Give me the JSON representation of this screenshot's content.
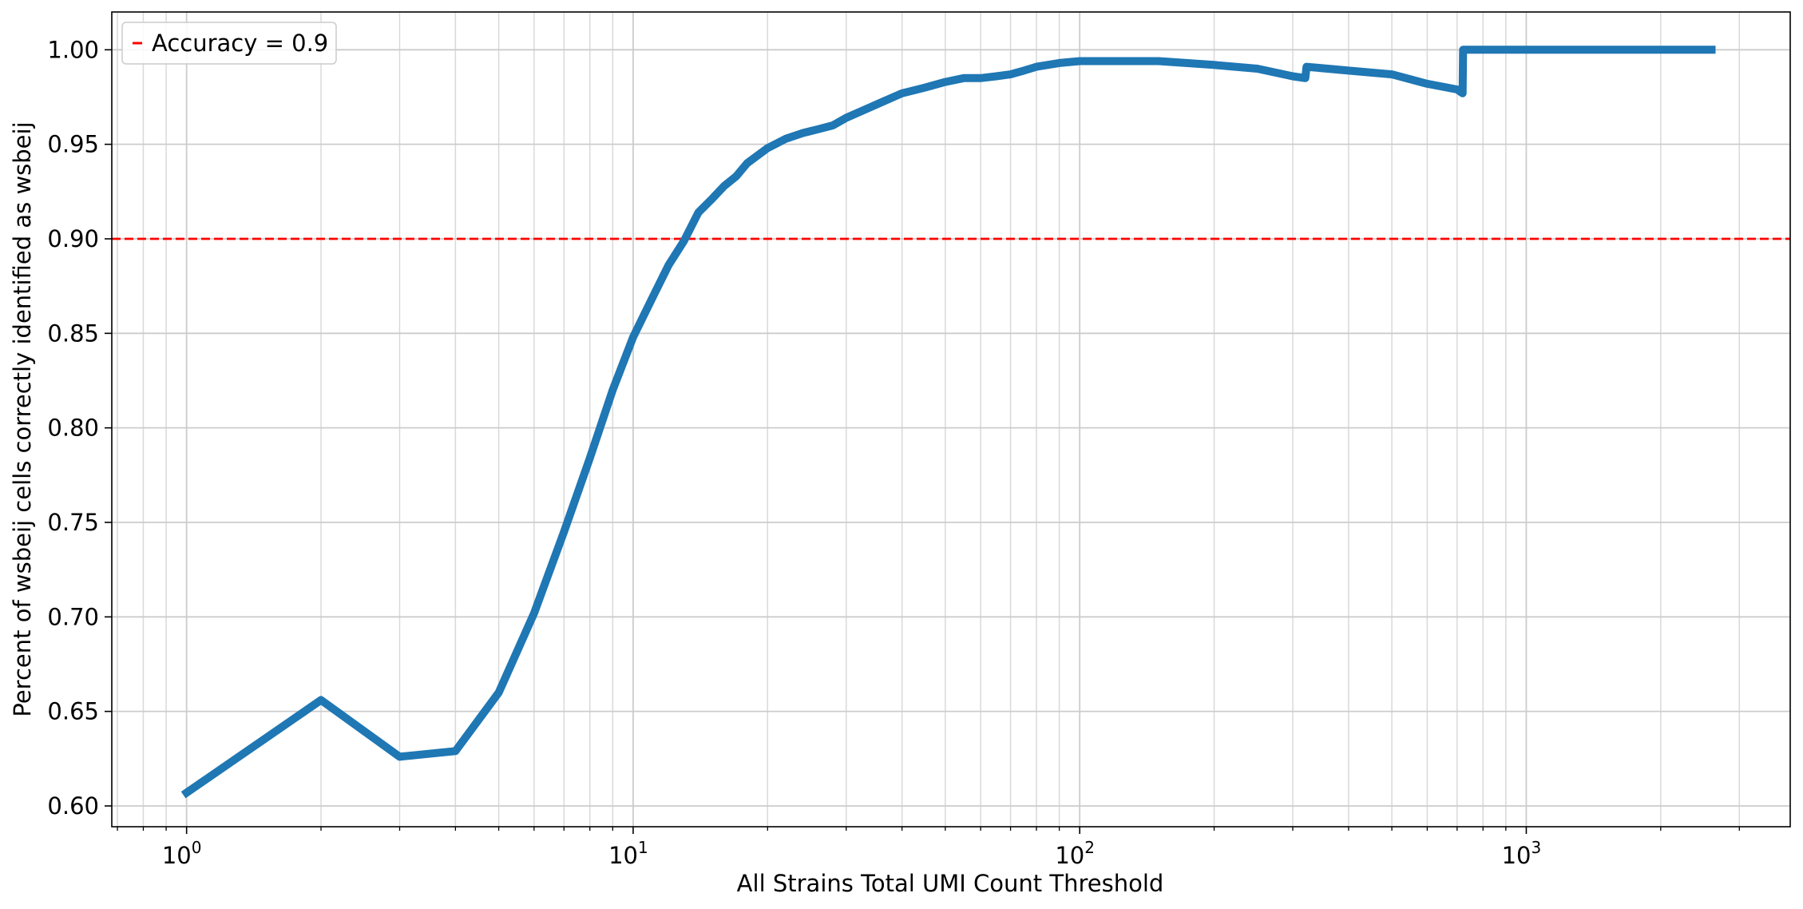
{
  "chart_data": {
    "type": "line",
    "title": "",
    "xlabel": "All Strains Total UMI Count Threshold",
    "ylabel": "Percent of wsbeij cells correctly identified as wsbeij",
    "x_scale": "log",
    "xlim": [
      0.68,
      3900
    ],
    "ylim": [
      0.589,
      1.02
    ],
    "grid": true,
    "grid_which": "major and minor",
    "x_ticks": [
      {
        "value": 1,
        "base": "10",
        "exp": "0"
      },
      {
        "value": 10,
        "base": "10",
        "exp": "1"
      },
      {
        "value": 100,
        "base": "10",
        "exp": "2"
      },
      {
        "value": 1000,
        "base": "10",
        "exp": "3"
      }
    ],
    "y_ticks": [
      {
        "value": 0.6,
        "label": "0.60"
      },
      {
        "value": 0.65,
        "label": "0.65"
      },
      {
        "value": 0.7,
        "label": "0.70"
      },
      {
        "value": 0.75,
        "label": "0.75"
      },
      {
        "value": 0.8,
        "label": "0.80"
      },
      {
        "value": 0.85,
        "label": "0.85"
      },
      {
        "value": 0.9,
        "label": "0.90"
      },
      {
        "value": 0.95,
        "label": "0.95"
      },
      {
        "value": 1.0,
        "label": "1.00"
      }
    ],
    "series": [
      {
        "name": "",
        "color": "#1f77b4",
        "x": [
          1,
          2,
          3,
          4,
          5,
          6,
          7,
          8,
          9,
          10,
          11,
          12,
          13,
          14,
          15,
          16,
          17,
          18,
          20,
          22,
          24,
          26,
          28,
          30,
          35,
          40,
          45,
          50,
          55,
          60,
          65,
          70,
          75,
          80,
          90,
          100,
          150,
          200,
          250,
          300,
          320,
          322,
          400,
          500,
          600,
          700,
          720,
          722,
          1000,
          2000,
          2600
        ],
        "y": [
          0.607,
          0.656,
          0.626,
          0.629,
          0.66,
          0.702,
          0.745,
          0.784,
          0.82,
          0.848,
          0.868,
          0.886,
          0.899,
          0.914,
          0.921,
          0.928,
          0.933,
          0.94,
          0.948,
          0.953,
          0.956,
          0.958,
          0.96,
          0.964,
          0.971,
          0.977,
          0.98,
          0.983,
          0.985,
          0.985,
          0.986,
          0.987,
          0.989,
          0.991,
          0.993,
          0.994,
          0.994,
          0.992,
          0.99,
          0.986,
          0.985,
          0.991,
          0.989,
          0.987,
          0.982,
          0.979,
          0.977,
          1.0,
          1.0,
          1.0,
          1.0
        ]
      }
    ],
    "reference_line": {
      "y": 0.9,
      "color": "#ff0000",
      "style": "dashed",
      "label": "Accuracy = 0.9"
    },
    "legend": {
      "position": "top-left",
      "entries": [
        "Accuracy = 0.9"
      ]
    }
  }
}
